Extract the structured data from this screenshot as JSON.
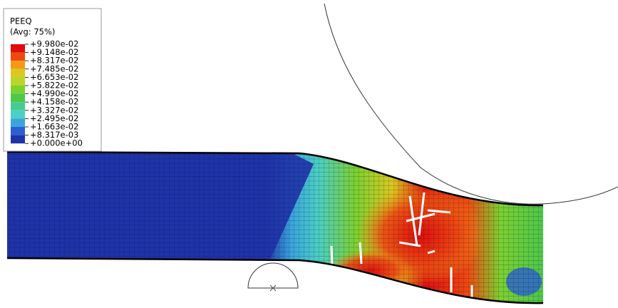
{
  "legend": {
    "title": "PEEQ",
    "subtitle": "(Avg: 75%)",
    "labels": [
      "+9.980e-02",
      "+9.148e-02",
      "+8.317e-02",
      "+7.485e-02",
      "+6.653e-02",
      "+5.822e-02",
      "+4.990e-02",
      "+4.158e-02",
      "+3.327e-02",
      "+2.495e-02",
      "+1.663e-02",
      "+8.317e-03",
      "+0.000e+00"
    ],
    "colors": [
      "#e00d0d",
      "#ee4a10",
      "#f59a16",
      "#dcc81e",
      "#b7d629",
      "#7cd12e",
      "#4dc84a",
      "#45cc8e",
      "#4ad0c4",
      "#3aa5dc",
      "#2c5fd2",
      "#1f33a8"
    ]
  }
}
